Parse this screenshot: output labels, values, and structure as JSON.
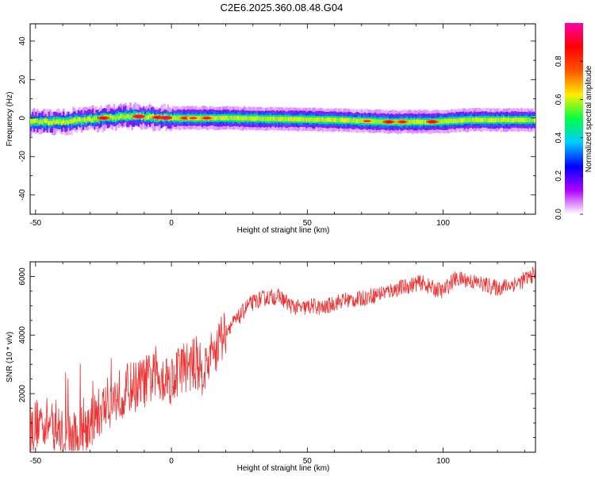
{
  "title": "C2E6.2025.360.08.48.G04",
  "colors": {
    "snr_line": "#ee3333",
    "frame": "#000000"
  },
  "chart_data": [
    {
      "type": "heatmap",
      "xlabel": "Height of straight line (km)",
      "ylabel": "Frequency (Hz)",
      "xlim": [
        -52,
        134
      ],
      "ylim": [
        -50,
        49
      ],
      "xticks": [
        -50,
        0,
        50,
        100
      ],
      "yticks": [
        40,
        20,
        0,
        -20,
        -40
      ],
      "colorbar": {
        "label": "Normalized spectral amplitude",
        "range": [
          0,
          1
        ],
        "ticks": [
          "0.0",
          "0.2",
          "0.4",
          "0.6",
          "0.8"
        ],
        "colors": [
          "#ffffff",
          "#b000ff",
          "#0000ff",
          "#00ccff",
          "#00ff44",
          "#ffee00",
          "#ff5500",
          "#ff0000",
          "#ff00aa"
        ]
      },
      "band": {
        "center_hz": [
          [
            -52,
            -2
          ],
          [
            -40,
            -2
          ],
          [
            -25,
            0
          ],
          [
            -15,
            1
          ],
          [
            0,
            0
          ],
          [
            20,
            0
          ],
          [
            60,
            -1
          ],
          [
            80,
            -2
          ],
          [
            95,
            -2
          ],
          [
            110,
            -1
          ],
          [
            134,
            -1
          ]
        ],
        "halfwidth_hz": 2.5,
        "peaks": [
          [
            -25,
            0.9
          ],
          [
            -12,
            0.95
          ],
          [
            -5,
            0.9
          ],
          [
            -2,
            0.95
          ],
          [
            5,
            0.85
          ],
          [
            8,
            0.8
          ],
          [
            13,
            0.85
          ],
          [
            72,
            0.8
          ],
          [
            80,
            0.9
          ],
          [
            85,
            0.85
          ],
          [
            96,
            0.9
          ]
        ]
      }
    },
    {
      "type": "line",
      "xlabel": "Height of straight line (km)",
      "ylabel": "SNR (10 * v/v)",
      "xlim": [
        -52,
        134
      ],
      "ylim": [
        0,
        6500
      ],
      "xticks": [
        -50,
        0,
        50,
        100
      ],
      "yticks": [
        2000,
        4000,
        6000
      ],
      "series": [
        {
          "x": [
            -52,
            -48,
            -44,
            -40,
            -36,
            -32,
            -28,
            -24,
            -20,
            -16,
            -12,
            -8,
            -4,
            0,
            4,
            8,
            12,
            16,
            20,
            24,
            28,
            32,
            36,
            40,
            44,
            48,
            52,
            56,
            60,
            64,
            68,
            72,
            76,
            80,
            84,
            88,
            92,
            96,
            100,
            104,
            108,
            112,
            116,
            120,
            124,
            128,
            132,
            134
          ],
          "y": [
            800,
            1100,
            900,
            600,
            500,
            800,
            1200,
            1600,
            1900,
            2200,
            2300,
            2500,
            2600,
            2500,
            2900,
            3000,
            2800,
            3500,
            4200,
            4500,
            5000,
            5200,
            5300,
            5300,
            5000,
            4900,
            5000,
            4900,
            5100,
            5200,
            5200,
            5300,
            5400,
            5500,
            5600,
            5700,
            5800,
            5600,
            5500,
            5900,
            5900,
            5800,
            5700,
            5600,
            5700,
            5800,
            6000,
            6100
          ]
        }
      ]
    }
  ]
}
